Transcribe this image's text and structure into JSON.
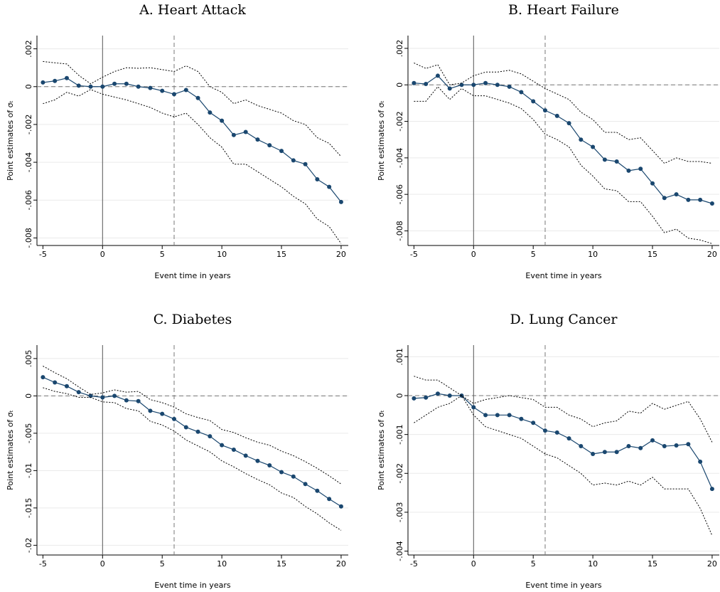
{
  "chart_data": [
    {
      "type": "line",
      "title": "A. Heart Attack",
      "xlabel": "Event time in years",
      "ylabel": "Point estimates of σₜ",
      "x": [
        -5,
        -4,
        -3,
        -2,
        -1,
        0,
        1,
        2,
        3,
        4,
        5,
        6,
        7,
        8,
        9,
        10,
        11,
        12,
        13,
        14,
        15,
        16,
        17,
        18,
        19,
        20
      ],
      "series": [
        {
          "color": "#1a476f",
          "style": "solid",
          "markers": true,
          "values": [
            0.00022,
            0.0003,
            0.00045,
            5e-05,
            0,
            0,
            0.00015,
            0.00015,
            0,
            -7e-05,
            -0.00022,
            -0.0004,
            -0.00018,
            -0.0006,
            -0.00137,
            -0.0018,
            -0.00256,
            -0.0024,
            -0.0028,
            -0.0031,
            -0.0034,
            -0.0039,
            -0.0041,
            -0.0049,
            -0.0053,
            -0.0061
          ]
        },
        {
          "color": "#000000",
          "style": "dotted",
          "markers": false,
          "values": [
            0.00133,
            0.00126,
            0.0012,
            0.0006,
            0.00015,
            0.0005,
            0.0008,
            0.001,
            0.00097,
            0.001,
            0.0009,
            0.0008,
            0.0011,
            0.0008,
            0,
            -0.0003,
            -0.0009,
            -0.0007,
            -0.001,
            -0.0012,
            -0.0014,
            -0.0018,
            -0.002,
            -0.0027,
            -0.003,
            -0.0037
          ]
        },
        {
          "color": "#000000",
          "style": "dotted",
          "markers": false,
          "values": [
            -0.0009,
            -0.0007,
            -0.0003,
            -0.0005,
            -0.00015,
            -0.0004,
            -0.00055,
            -0.0007,
            -0.0009,
            -0.0011,
            -0.0014,
            -0.0016,
            -0.0014,
            -0.002,
            -0.0027,
            -0.0032,
            -0.0041,
            -0.0041,
            -0.0045,
            -0.0049,
            -0.0053,
            -0.0058,
            -0.0062,
            -0.007,
            -0.0074,
            -0.0083
          ]
        }
      ],
      "xlim": [
        -5.5,
        20.6
      ],
      "xticks": [
        -5,
        0,
        5,
        10,
        15,
        20
      ],
      "ylim": [
        -0.0084,
        0.0027
      ],
      "yticks": [
        {
          "value": 0.002,
          "label": ".002"
        },
        0,
        {
          "value": -0.002,
          "label": "-.002"
        },
        {
          "value": -0.004,
          "label": "-.004"
        },
        {
          "value": -0.006,
          "label": "-.006"
        },
        {
          "value": -0.008,
          "label": "-.008"
        }
      ],
      "grid": true,
      "vlines": [
        {
          "x": 0,
          "style": "solid"
        },
        {
          "x": 6,
          "style": "dashed"
        }
      ],
      "hlines": [
        {
          "y": 0,
          "style": "dashed"
        }
      ]
    },
    {
      "type": "line",
      "title": "B. Heart Failure",
      "xlabel": "Event time in years",
      "ylabel": "Point estimates of σₜ",
      "x": [
        -5,
        -4,
        -3,
        -2,
        -1,
        0,
        1,
        2,
        3,
        4,
        5,
        6,
        7,
        8,
        9,
        10,
        11,
        12,
        13,
        14,
        15,
        16,
        17,
        18,
        19,
        20
      ],
      "series": [
        {
          "color": "#1a476f",
          "style": "solid",
          "markers": true,
          "values": [
            0.0001,
            5e-05,
            0.0005,
            -0.0002,
            0,
            0,
            0.0001,
            0,
            -0.0001,
            -0.0004,
            -0.0009,
            -0.0014,
            -0.0017,
            -0.0021,
            -0.003,
            -0.0034,
            -0.0041,
            -0.0042,
            -0.0047,
            -0.0046,
            -0.0054,
            -0.0062,
            -0.006,
            -0.0063,
            -0.0063,
            -0.0065
          ]
        },
        {
          "color": "#000000",
          "style": "dotted",
          "markers": false,
          "values": [
            0.0012,
            0.0009,
            0.0011,
            0,
            0.0001,
            0.0005,
            0.0007,
            0.0007,
            0.0008,
            0.0006,
            0.0002,
            -0.0002,
            -0.0005,
            -0.0008,
            -0.0015,
            -0.0019,
            -0.0026,
            -0.0026,
            -0.003,
            -0.0029,
            -0.0036,
            -0.0043,
            -0.004,
            -0.0042,
            -0.0042,
            -0.0043
          ]
        },
        {
          "color": "#000000",
          "style": "dotted",
          "markers": false,
          "values": [
            -0.0009,
            -0.0009,
            -0.0001,
            -0.0008,
            -0.0002,
            -0.0006,
            -0.0006,
            -0.0008,
            -0.001,
            -0.0013,
            -0.0019,
            -0.0027,
            -0.003,
            -0.0034,
            -0.0044,
            -0.005,
            -0.0057,
            -0.0058,
            -0.0064,
            -0.0064,
            -0.0072,
            -0.0081,
            -0.0079,
            -0.0084,
            -0.0085,
            -0.0087
          ]
        }
      ],
      "xlim": [
        -5.5,
        20.6
      ],
      "xticks": [
        -5,
        0,
        5,
        10,
        15,
        20
      ],
      "ylim": [
        -0.0088,
        0.0027
      ],
      "yticks": [
        {
          "value": 0.002,
          "label": ".002"
        },
        0,
        {
          "value": -0.002,
          "label": "-.002"
        },
        {
          "value": -0.004,
          "label": "-.004"
        },
        {
          "value": -0.006,
          "label": "-.006"
        },
        {
          "value": -0.008,
          "label": "-.008"
        }
      ],
      "grid": true,
      "vlines": [
        {
          "x": 0,
          "style": "solid"
        },
        {
          "x": 6,
          "style": "dashed"
        }
      ],
      "hlines": [
        {
          "y": 0,
          "style": "dashed"
        }
      ]
    },
    {
      "type": "line",
      "title": "C. Diabetes",
      "xlabel": "Event time in years",
      "ylabel": "Point estimates of σₜ",
      "x": [
        -5,
        -4,
        -3,
        -2,
        -1,
        0,
        1,
        2,
        3,
        4,
        5,
        6,
        7,
        8,
        9,
        10,
        11,
        12,
        13,
        14,
        15,
        16,
        17,
        18,
        19,
        20
      ],
      "series": [
        {
          "color": "#1a476f",
          "style": "solid",
          "markers": true,
          "values": [
            0.0025,
            0.0018,
            0.0013,
            0.0005,
            0,
            -0.0002,
            0,
            -0.0006,
            -0.0007,
            -0.002,
            -0.0024,
            -0.0031,
            -0.0042,
            -0.0048,
            -0.0054,
            -0.0066,
            -0.0072,
            -0.008,
            -0.0087,
            -0.0093,
            -0.0102,
            -0.0108,
            -0.0118,
            -0.0127,
            -0.0138,
            -0.0148
          ]
        },
        {
          "color": "#000000",
          "style": "dotted",
          "markers": false,
          "values": [
            0.004,
            0.0031,
            0.0023,
            0.0012,
            0.0002,
            0.0004,
            0.0008,
            0.0005,
            0.0006,
            -0.0005,
            -0.0009,
            -0.0015,
            -0.0024,
            -0.0029,
            -0.0033,
            -0.0045,
            -0.0049,
            -0.0056,
            -0.0062,
            -0.0066,
            -0.0074,
            -0.008,
            -0.0088,
            -0.0097,
            -0.0107,
            -0.0118
          ]
        },
        {
          "color": "#000000",
          "style": "dotted",
          "markers": false,
          "values": [
            0.0011,
            0.0006,
            0.0003,
            -0.0002,
            -0.0002,
            -0.0008,
            -0.0009,
            -0.0017,
            -0.002,
            -0.0034,
            -0.0039,
            -0.0047,
            -0.0059,
            -0.0067,
            -0.0075,
            -0.0087,
            -0.0095,
            -0.0104,
            -0.0112,
            -0.0119,
            -0.013,
            -0.0136,
            -0.0148,
            -0.0158,
            -0.017,
            -0.018
          ]
        }
      ],
      "xlim": [
        -5.5,
        20.6
      ],
      "xticks": [
        -5,
        0,
        5,
        10,
        15,
        20
      ],
      "ylim": [
        -0.0213,
        0.0068
      ],
      "yticks": [
        {
          "value": 0.005,
          "label": ".005"
        },
        0,
        {
          "value": -0.005,
          "label": "-.005"
        },
        {
          "value": -0.01,
          "label": "-.01"
        },
        {
          "value": -0.015,
          "label": "-.015"
        },
        {
          "value": -0.02,
          "label": "-.02"
        }
      ],
      "grid": true,
      "vlines": [
        {
          "x": 0,
          "style": "solid"
        },
        {
          "x": 6,
          "style": "dashed"
        }
      ],
      "hlines": [
        {
          "y": 0,
          "style": "dashed"
        }
      ]
    },
    {
      "type": "line",
      "title": "D. Lung Cancer",
      "xlabel": "Event time in years",
      "ylabel": "Point estimates of σₜ",
      "x": [
        -5,
        -4,
        -3,
        -2,
        -1,
        0,
        1,
        2,
        3,
        4,
        5,
        6,
        7,
        8,
        9,
        10,
        11,
        12,
        13,
        14,
        15,
        16,
        17,
        18,
        19,
        20
      ],
      "series": [
        {
          "color": "#1a476f",
          "style": "solid",
          "markers": true,
          "values": [
            -7e-05,
            -5e-05,
            5e-05,
            0,
            0,
            -0.0003,
            -0.0005,
            -0.0005,
            -0.0005,
            -0.0006,
            -0.0007,
            -0.0009,
            -0.00095,
            -0.0011,
            -0.0013,
            -0.0015,
            -0.00145,
            -0.00145,
            -0.0013,
            -0.00135,
            -0.00115,
            -0.0013,
            -0.00128,
            -0.00125,
            -0.0017,
            -0.0024
          ]
        },
        {
          "color": "#000000",
          "style": "dotted",
          "markers": false,
          "values": [
            0.0005,
            0.0004,
            0.0004,
            0.0002,
            0,
            -0.0002,
            -0.0001,
            -5e-05,
            0,
            -5e-05,
            -0.0001,
            -0.0003,
            -0.0003,
            -0.0005,
            -0.0006,
            -0.0008,
            -0.0007,
            -0.00065,
            -0.0004,
            -0.00045,
            -0.0002,
            -0.00035,
            -0.00025,
            -0.00015,
            -0.0006,
            -0.0012
          ]
        },
        {
          "color": "#000000",
          "style": "dotted",
          "markers": false,
          "values": [
            -0.0007,
            -0.0005,
            -0.0003,
            -0.0002,
            0,
            -0.0005,
            -0.0008,
            -0.0009,
            -0.001,
            -0.0011,
            -0.0013,
            -0.0015,
            -0.0016,
            -0.0018,
            -0.002,
            -0.0023,
            -0.00225,
            -0.0023,
            -0.0022,
            -0.0023,
            -0.0021,
            -0.0024,
            -0.0024,
            -0.0024,
            -0.0029,
            -0.0036
          ]
        }
      ],
      "xlim": [
        -5.5,
        20.6
      ],
      "xticks": [
        -5,
        0,
        5,
        10,
        15,
        20
      ],
      "ylim": [
        -0.0041,
        0.0013
      ],
      "yticks": [
        {
          "value": 0.001,
          "label": ".001"
        },
        0,
        {
          "value": -0.001,
          "label": "-.001"
        },
        {
          "value": -0.002,
          "label": "-.002"
        },
        {
          "value": -0.003,
          "label": "-.003"
        },
        {
          "value": -0.004,
          "label": "-.004"
        }
      ],
      "grid": true,
      "vlines": [
        {
          "x": 0,
          "style": "solid"
        },
        {
          "x": 6,
          "style": "dashed"
        }
      ],
      "hlines": [
        {
          "y": 0,
          "style": "dashed"
        }
      ]
    }
  ]
}
